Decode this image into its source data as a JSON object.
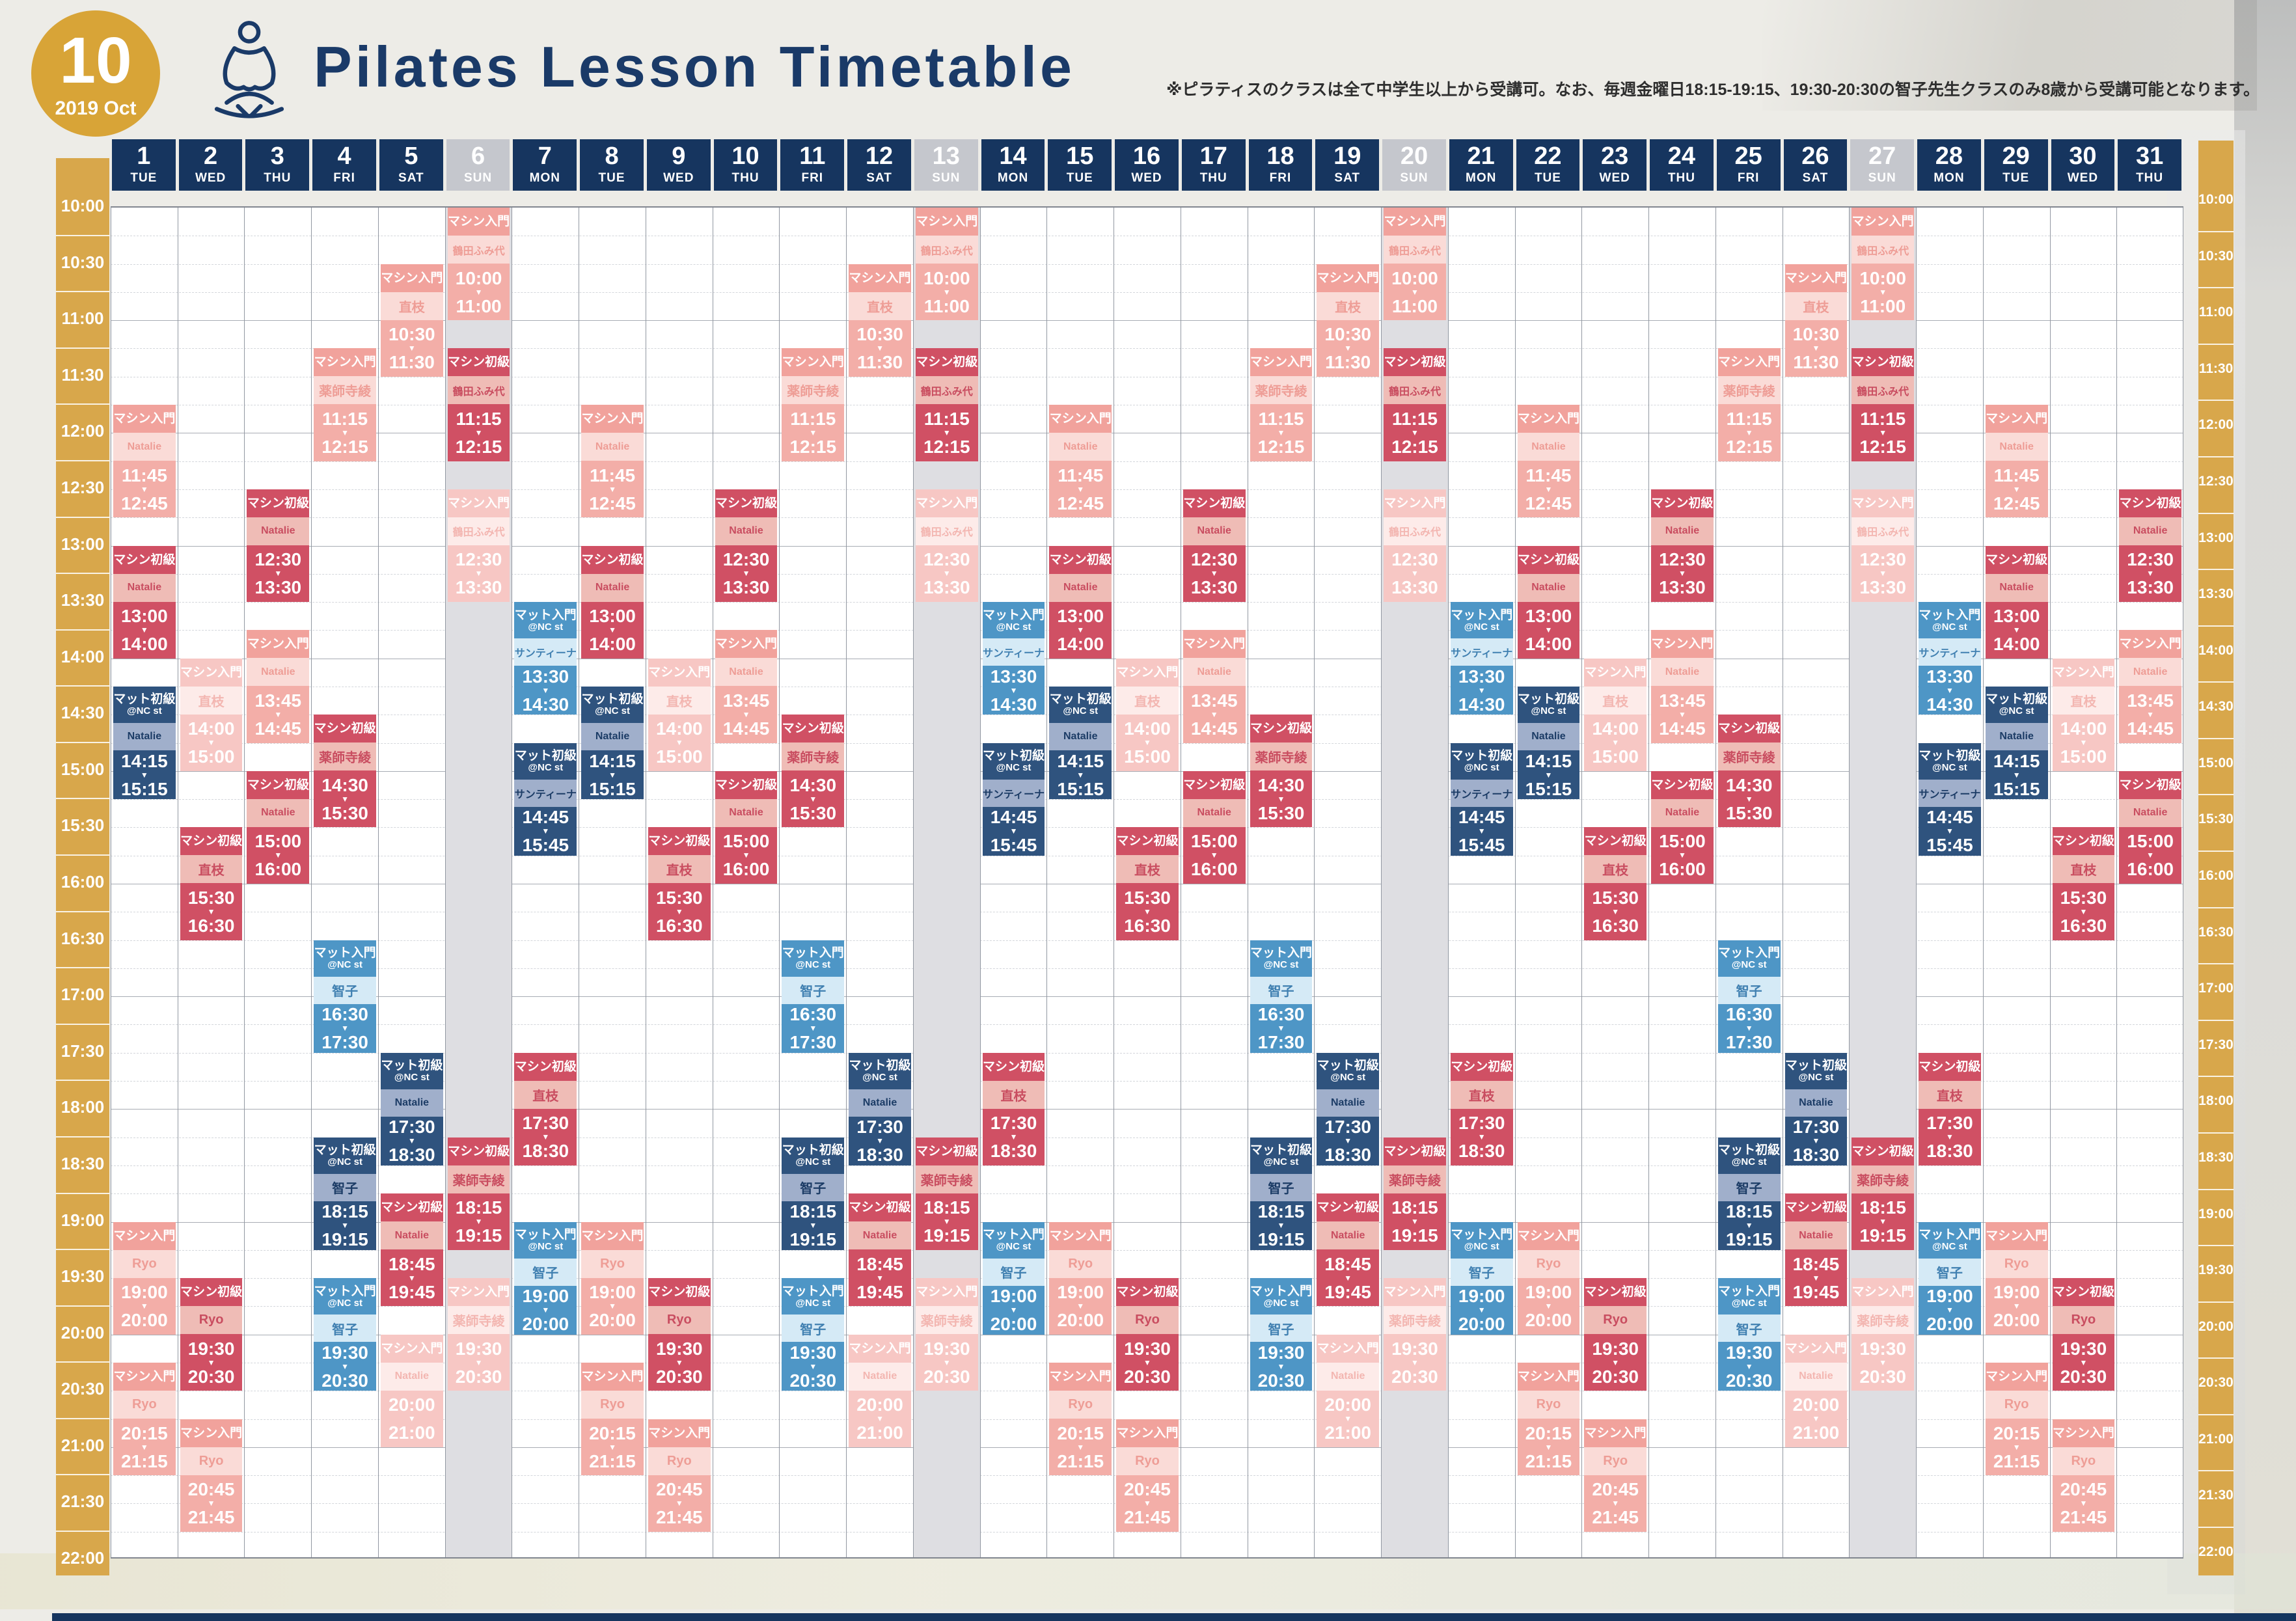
{
  "header": {
    "badge": {
      "month": "10",
      "sub": "2019 Oct"
    },
    "title": "Pilates Lesson Timetable",
    "note": "※ピラティスのクラスは全て中学生以上から受講可。なお、毎週金曜日18:15-19:15、19:30-20:30の智子先生クラスのみ8歳から受講可能となります。",
    "logo_icon": "meditating-person-icon"
  },
  "time_axis": {
    "start": "10:00",
    "end": "22:00",
    "labels": [
      "10:00",
      "10:30",
      "11:00",
      "11:30",
      "12:00",
      "12:30",
      "13:00",
      "13:30",
      "14:00",
      "14:30",
      "15:00",
      "15:30",
      "16:00",
      "16:30",
      "17:00",
      "17:30",
      "18:00",
      "18:30",
      "19:00",
      "19:30",
      "20:00",
      "20:30",
      "21:00",
      "21:30",
      "22:00"
    ]
  },
  "calendar": {
    "year": 2019,
    "month": 10,
    "days": [
      {
        "num": "1",
        "dow": "TUE"
      },
      {
        "num": "2",
        "dow": "WED"
      },
      {
        "num": "3",
        "dow": "THU"
      },
      {
        "num": "4",
        "dow": "FRI"
      },
      {
        "num": "5",
        "dow": "SAT"
      },
      {
        "num": "6",
        "dow": "SUN"
      },
      {
        "num": "7",
        "dow": "MON"
      },
      {
        "num": "8",
        "dow": "TUE"
      },
      {
        "num": "9",
        "dow": "WED"
      },
      {
        "num": "10",
        "dow": "THU"
      },
      {
        "num": "11",
        "dow": "FRI"
      },
      {
        "num": "12",
        "dow": "SAT"
      },
      {
        "num": "13",
        "dow": "SUN"
      },
      {
        "num": "14",
        "dow": "MON"
      },
      {
        "num": "15",
        "dow": "TUE"
      },
      {
        "num": "16",
        "dow": "WED"
      },
      {
        "num": "17",
        "dow": "THU"
      },
      {
        "num": "18",
        "dow": "FRI"
      },
      {
        "num": "19",
        "dow": "SAT"
      },
      {
        "num": "20",
        "dow": "SUN"
      },
      {
        "num": "21",
        "dow": "MON"
      },
      {
        "num": "22",
        "dow": "TUE"
      },
      {
        "num": "23",
        "dow": "WED"
      },
      {
        "num": "24",
        "dow": "THU"
      },
      {
        "num": "25",
        "dow": "FRI"
      },
      {
        "num": "26",
        "dow": "SAT"
      },
      {
        "num": "27",
        "dow": "SUN"
      },
      {
        "num": "28",
        "dow": "MON"
      },
      {
        "num": "29",
        "dow": "TUE"
      },
      {
        "num": "30",
        "dow": "WED"
      },
      {
        "num": "31",
        "dow": "THU"
      }
    ]
  },
  "colors": {
    "header_navy": "#16355F",
    "sunday_grey_header": "#C5C7CD",
    "gold_time_bar": "#D8A74B",
    "machine_intro_salmon": "#F1A29C",
    "machine_intro_pale": "#F7C7C4",
    "machine_beginner_crimson": "#D05064",
    "mat_intro_lightblue": "#4E96C6",
    "mat_beginner_navy": "#2F537E",
    "closed_grey": "#DEDEE2"
  },
  "schedule": {
    "closed_day": "SUN",
    "time_arrow_icon": "▼",
    "weekday_patterns": {
      "MON": [
        {
          "type": "マット入門",
          "sub": "@NC st",
          "teacher": "サンティーナ",
          "start": "13:30",
          "end": "14:30",
          "tone": "ltblue"
        },
        {
          "type": "マット初級",
          "sub": "@NC st",
          "teacher": "サンティーナ",
          "start": "14:45",
          "end": "15:45",
          "tone": "navy"
        },
        {
          "type": "マシン初級",
          "sub": "",
          "teacher": "直枝",
          "start": "17:30",
          "end": "18:30",
          "tone": "crimson"
        },
        {
          "type": "マット入門",
          "sub": "@NC st",
          "teacher": "智子",
          "start": "19:00",
          "end": "20:00",
          "tone": "ltblue"
        }
      ],
      "TUE": [
        {
          "type": "マシン入門",
          "sub": "",
          "teacher": "Natalie",
          "start": "11:45",
          "end": "12:45",
          "tone": "salmon"
        },
        {
          "type": "マシン初級",
          "sub": "",
          "teacher": "Natalie",
          "start": "13:00",
          "end": "14:00",
          "tone": "crimson"
        },
        {
          "type": "マット初級",
          "sub": "@NC st",
          "teacher": "Natalie",
          "start": "14:15",
          "end": "15:15",
          "tone": "navy"
        },
        {
          "type": "マシン入門",
          "sub": "",
          "teacher": "Ryo",
          "start": "19:00",
          "end": "20:00",
          "tone": "salmon"
        },
        {
          "type": "マシン入門",
          "sub": "",
          "teacher": "Ryo",
          "start": "20:15",
          "end": "21:15",
          "tone": "salmon"
        }
      ],
      "WED": [
        {
          "type": "マシン入門",
          "sub": "",
          "teacher": "直枝",
          "start": "14:00",
          "end": "15:00",
          "tone": "pale"
        },
        {
          "type": "マシン初級",
          "sub": "",
          "teacher": "直枝",
          "start": "15:30",
          "end": "16:30",
          "tone": "crimson"
        },
        {
          "type": "マシン初級",
          "sub": "",
          "teacher": "Ryo",
          "start": "19:30",
          "end": "20:30",
          "tone": "crimson"
        },
        {
          "type": "マシン入門",
          "sub": "",
          "teacher": "Ryo",
          "start": "20:45",
          "end": "21:45",
          "tone": "salmon"
        }
      ],
      "THU": [
        {
          "type": "マシン初級",
          "sub": "",
          "teacher": "Natalie",
          "start": "12:30",
          "end": "13:30",
          "tone": "crimson"
        },
        {
          "type": "マシン入門",
          "sub": "",
          "teacher": "Natalie",
          "start": "13:45",
          "end": "14:45",
          "tone": "salmon"
        },
        {
          "type": "マシン初級",
          "sub": "",
          "teacher": "Natalie",
          "start": "15:00",
          "end": "16:00",
          "tone": "crimson"
        }
      ],
      "FRI": [
        {
          "type": "マシン入門",
          "sub": "",
          "teacher": "薬師寺綾",
          "start": "11:15",
          "end": "12:15",
          "tone": "salmon"
        },
        {
          "type": "マシン初級",
          "sub": "",
          "teacher": "薬師寺綾",
          "start": "14:30",
          "end": "15:30",
          "tone": "crimson"
        },
        {
          "type": "マット入門",
          "sub": "@NC st",
          "teacher": "智子",
          "start": "16:30",
          "end": "17:30",
          "tone": "ltblue"
        },
        {
          "type": "マット初級",
          "sub": "@NC st",
          "teacher": "智子",
          "start": "18:15",
          "end": "19:15",
          "tone": "navy"
        },
        {
          "type": "マット入門",
          "sub": "@NC st",
          "teacher": "智子",
          "start": "19:30",
          "end": "20:30",
          "tone": "ltblue"
        }
      ],
      "SAT": [
        {
          "type": "マシン入門",
          "sub": "",
          "teacher": "直枝",
          "start": "10:30",
          "end": "11:30",
          "tone": "salmon"
        },
        {
          "type": "マット初級",
          "sub": "@NC st",
          "teacher": "Natalie",
          "start": "17:30",
          "end": "18:30",
          "tone": "navy"
        },
        {
          "type": "マシン初級",
          "sub": "",
          "teacher": "Natalie",
          "start": "18:45",
          "end": "19:45",
          "tone": "crimson"
        },
        {
          "type": "マシン入門",
          "sub": "",
          "teacher": "Natalie",
          "start": "20:00",
          "end": "21:00",
          "tone": "pale"
        }
      ],
      "SUN": [
        {
          "type": "マシン入門",
          "sub": "",
          "teacher": "鶴田ふみ代",
          "start": "10:00",
          "end": "11:00",
          "tone": "salmon"
        },
        {
          "type": "マシン初級",
          "sub": "",
          "teacher": "鶴田ふみ代",
          "start": "11:15",
          "end": "12:15",
          "tone": "crimson"
        },
        {
          "type": "マシン入門",
          "sub": "",
          "teacher": "鶴田ふみ代",
          "start": "12:30",
          "end": "13:30",
          "tone": "pale"
        },
        {
          "type": "マシン初級",
          "sub": "",
          "teacher": "薬師寺綾",
          "start": "18:15",
          "end": "19:15",
          "tone": "crimson"
        },
        {
          "type": "マシン入門",
          "sub": "",
          "teacher": "薬師寺綾",
          "start": "19:30",
          "end": "20:30",
          "tone": "pale"
        }
      ]
    }
  }
}
